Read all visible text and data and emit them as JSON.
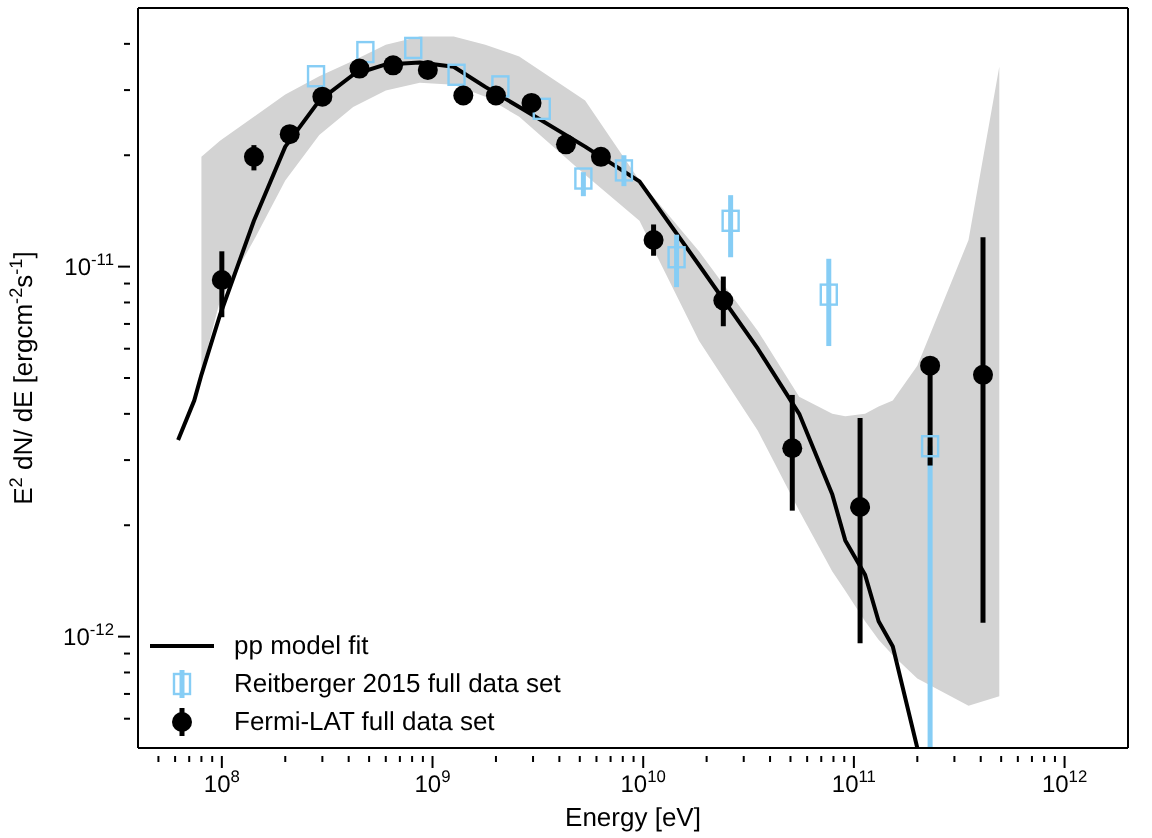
{
  "chart_data": {
    "type": "scatter",
    "xlabel": "Energy [eV]",
    "ylabel": "E$^{2}$ dN/ dE [ergcm$^{-2}$s$^{-1}$]",
    "log": "xy",
    "legend": "bottom left",
    "xlim": [
      40000000.0,
      2000000000000.0
    ],
    "ylim": [
      5e-13,
      5e-11
    ],
    "xticks": [
      {
        "value": 50000000.0,
        "label": null
      },
      {
        "value": 60000000.0,
        "label": null
      },
      {
        "value": 70000000.0,
        "label": null
      },
      {
        "value": 80000000.0,
        "label": null
      },
      {
        "value": 90000000.0,
        "label": null
      },
      {
        "value": 100000000.0,
        "label": "10$^{8}$"
      },
      {
        "value": 200000000.0,
        "label": null
      },
      {
        "value": 300000000.0,
        "label": null
      },
      {
        "value": 400000000.0,
        "label": null
      },
      {
        "value": 500000000.0,
        "label": null
      },
      {
        "value": 600000000.0,
        "label": null
      },
      {
        "value": 700000000.0,
        "label": null
      },
      {
        "value": 800000000.0,
        "label": null
      },
      {
        "value": 900000000.0,
        "label": null
      },
      {
        "value": 1000000000.0,
        "label": "10$^{9}$"
      },
      {
        "value": 2000000000.0,
        "label": null
      },
      {
        "value": 3000000000.0,
        "label": null
      },
      {
        "value": 4000000000.0,
        "label": null
      },
      {
        "value": 5000000000.0,
        "label": null
      },
      {
        "value": 6000000000.0,
        "label": null
      },
      {
        "value": 7000000000.0,
        "label": null
      },
      {
        "value": 8000000000.0,
        "label": null
      },
      {
        "value": 9000000000.0,
        "label": null
      },
      {
        "value": 10000000000.0,
        "label": "10$^{10}$"
      },
      {
        "value": 20000000000.0,
        "label": null
      },
      {
        "value": 30000000000.0,
        "label": null
      },
      {
        "value": 40000000000.0,
        "label": null
      },
      {
        "value": 50000000000.0,
        "label": null
      },
      {
        "value": 60000000000.0,
        "label": null
      },
      {
        "value": 70000000000.0,
        "label": null
      },
      {
        "value": 80000000000.0,
        "label": null
      },
      {
        "value": 90000000000.0,
        "label": null
      },
      {
        "value": 100000000000.0,
        "label": "10$^{11}$"
      },
      {
        "value": 200000000000.0,
        "label": null
      },
      {
        "value": 300000000000.0,
        "label": null
      },
      {
        "value": 400000000000.0,
        "label": null
      },
      {
        "value": 500000000000.0,
        "label": null
      },
      {
        "value": 600000000000.0,
        "label": null
      },
      {
        "value": 700000000000.0,
        "label": null
      },
      {
        "value": 800000000000.0,
        "label": null
      },
      {
        "value": 900000000000.0,
        "label": null
      },
      {
        "value": 1000000000000.0,
        "label": "10$^{12}$"
      }
    ],
    "yticks": [
      {
        "value": 6e-13,
        "label": null
      },
      {
        "value": 7e-13,
        "label": null
      },
      {
        "value": 8e-13,
        "label": null
      },
      {
        "value": 9e-13,
        "label": null
      },
      {
        "value": 1e-12,
        "label": "10$^{-12}$"
      },
      {
        "value": 2e-12,
        "label": null
      },
      {
        "value": 3e-12,
        "label": null
      },
      {
        "value": 4e-12,
        "label": null
      },
      {
        "value": 5e-12,
        "label": null
      },
      {
        "value": 6e-12,
        "label": null
      },
      {
        "value": 7e-12,
        "label": null
      },
      {
        "value": 8e-12,
        "label": null
      },
      {
        "value": 9e-12,
        "label": null
      },
      {
        "value": 1e-11,
        "label": "10$^{-11}$"
      },
      {
        "value": 2e-11,
        "label": null
      },
      {
        "value": 3e-11,
        "label": null
      },
      {
        "value": 4e-11,
        "label": null
      }
    ],
    "series": [
      {
        "name": "pp model fit",
        "type": "line",
        "color": "#000000",
        "marker": "none",
        "line_style": "solid",
        "x": [
          62000000.0,
          74000000.0,
          80000000.0,
          98000000.0,
          142000000.0,
          200000000.0,
          290000000.0,
          420000000.0,
          600000000.0,
          870000000.0,
          1260000000.0,
          1780000000.0,
          2580000000.0,
          5300000000.0,
          9600000000.0,
          18400000000.0,
          35000000000.0,
          55000000000.0,
          79000000000.0,
          91000000000.0,
          113000000000.0,
          131000000000.0,
          153000000000.0,
          200000000000.0,
          350000000000.0,
          490000000000.0
        ],
        "values": [
          3.4e-12,
          4.35e-12,
          5.1e-12,
          7.4e-12,
          1.33e-11,
          2.11e-11,
          2.81e-11,
          3.3e-11,
          3.52e-11,
          3.56e-11,
          3.47e-11,
          3.06e-11,
          2.7e-11,
          2.11e-11,
          1.7e-11,
          1.01e-11,
          6e-12,
          4e-12,
          2.42e-12,
          1.82e-12,
          1.47e-12,
          1.1e-12,
          9.4e-13,
          5e-13,
          null,
          null
        ],
        "lower": [
          null,
          null,
          5.2e-12,
          8.1e-12,
          1.18e-11,
          1.71e-11,
          2.27e-11,
          2.7e-11,
          2.99e-11,
          3.14e-11,
          3.1e-11,
          2.88e-11,
          2.54e-11,
          1.77e-11,
          1.33e-11,
          6.3e-12,
          3.6e-12,
          2.19e-12,
          1.5e-12,
          1.33e-12,
          1.1e-12,
          9.8e-13,
          8.9e-13,
          7.7e-13,
          6.5e-13,
          6.9e-13
        ],
        "upper": [
          null,
          null,
          1.98e-11,
          2.19e-11,
          2.54e-11,
          2.92e-11,
          3.27e-11,
          3.6e-11,
          3.98e-11,
          4.19e-11,
          4.19e-11,
          3.98e-11,
          3.7e-11,
          2.81e-11,
          1.71e-11,
          1.1e-11,
          6.7e-12,
          4.45e-12,
          4e-12,
          3.94e-12,
          4e-12,
          4.19e-12,
          4.35e-12,
          5.4e-12,
          1.18e-11,
          3.47e-11
        ]
      },
      {
        "name": "Reitberger 2015 full data set",
        "color": "#86cdf5",
        "marker": "square",
        "x": [
          280000000.0,
          480000000.0,
          810000000.0,
          1300000000.0,
          2100000000.0,
          3300000000.0,
          5200000000.0,
          8100000000.0,
          14400000000.0,
          26000000000.0,
          76000000000.0,
          230000000000.0
        ],
        "values": [
          3.27e-11,
          3.8e-11,
          3.9e-11,
          3.3e-11,
          3.07e-11,
          2.67e-11,
          1.73e-11,
          1.82e-11,
          1.06e-11,
          1.33e-11,
          8.4e-12,
          3.27e-12
        ],
        "errors": [
          null,
          null,
          null,
          null,
          null,
          null,
          [
            1.55e-11,
            1.8e-11
          ],
          [
            1.65e-11,
            2e-11
          ],
          [
            8.8e-12,
            1.22e-11
          ],
          [
            1.06e-11,
            1.56e-11
          ],
          [
            6.1e-12,
            1.05e-11
          ],
          [
            5e-13,
            3.27e-12
          ]
        ]
      },
      {
        "name": "Fermi-LAT full data set",
        "color": "#000000",
        "marker": "circle",
        "x": [
          100000000.0,
          142000000.0,
          210000000.0,
          300000000.0,
          450000000.0,
          650000000.0,
          950000000.0,
          1400000000.0,
          2000000000.0,
          2950000000.0,
          4300000000.0,
          6300000000.0,
          11200000000.0,
          24000000000.0,
          51000000000.0,
          107000000000.0,
          230000000000.0,
          410000000000.0
        ],
        "values": [
          9.2e-12,
          1.98e-11,
          2.28e-11,
          2.88e-11,
          3.43e-11,
          3.5e-11,
          3.4e-11,
          2.9e-11,
          2.9e-11,
          2.77e-11,
          2.14e-11,
          1.98e-11,
          1.18e-11,
          8.1e-12,
          3.23e-12,
          2.24e-12,
          5.4e-12,
          5.1e-12
        ],
        "errors": [
          [
            7.3e-12,
            1.1e-11
          ],
          [
            1.82e-11,
            2.13e-11
          ],
          null,
          null,
          null,
          null,
          null,
          null,
          null,
          null,
          null,
          null,
          [
            1.07e-11,
            1.3e-11
          ],
          [
            6.9e-12,
            9.4e-12
          ],
          [
            2.19e-12,
            4.5e-12
          ],
          [
            9.6e-13,
            3.9e-12
          ],
          [
            2.9e-12,
            5.4e-12
          ],
          [
            1.09e-12,
            1.2e-11
          ]
        ]
      }
    ]
  }
}
